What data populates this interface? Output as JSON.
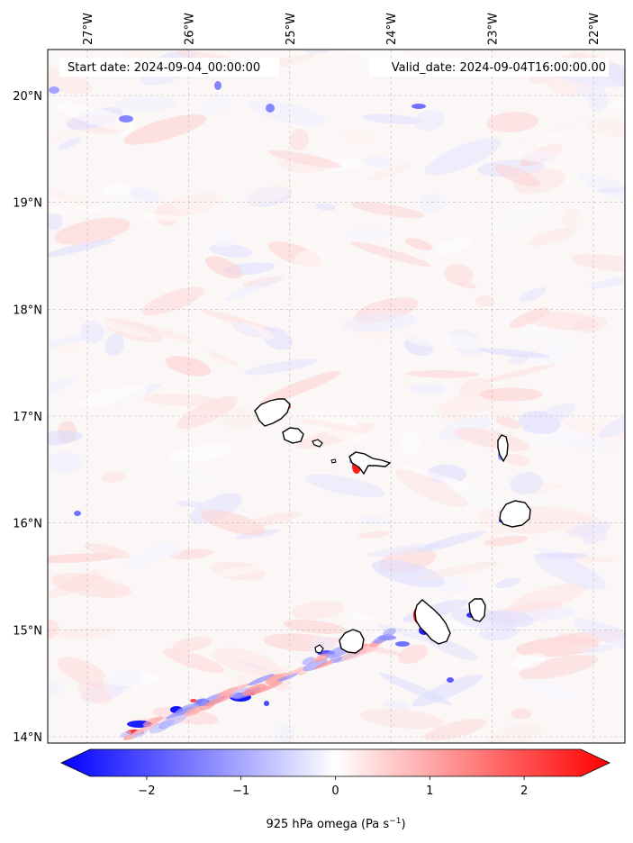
{
  "map": {
    "start_date_label": "Start date: 2024-09-04_00:00:00",
    "valid_date_label": "Valid_date: 2024-09-04T16:00:00.00",
    "lon_ticks": [
      {
        "value": -27,
        "label": "27°W"
      },
      {
        "value": -26,
        "label": "26°W"
      },
      {
        "value": -25,
        "label": "25°W"
      },
      {
        "value": -24,
        "label": "24°W"
      },
      {
        "value": -23,
        "label": "23°W"
      },
      {
        "value": -22,
        "label": "22°W"
      }
    ],
    "lat_ticks": [
      {
        "value": 20,
        "label": "20°N"
      },
      {
        "value": 19,
        "label": "19°N"
      },
      {
        "value": 18,
        "label": "18°N"
      },
      {
        "value": 17,
        "label": "17°N"
      },
      {
        "value": 16,
        "label": "16°N"
      },
      {
        "value": 15,
        "label": "15°N"
      },
      {
        "value": 14,
        "label": "14°N"
      }
    ],
    "extent": {
      "lon_min": -27.4,
      "lon_max": -21.7,
      "lat_min": 13.95,
      "lat_max": 20.42
    },
    "gridlines": true,
    "gridline_color": "#bbbbbb",
    "coastline_color": "#000000",
    "background_color": "#fbf7f7",
    "islands": [
      {
        "name": "Santo Antão",
        "lon": -24.98,
        "lat": 17.06
      },
      {
        "name": "São Vicente",
        "lon": -24.97,
        "lat": 16.85
      },
      {
        "name": "Santa Luzia",
        "lon": -24.75,
        "lat": 16.77
      },
      {
        "name": "São Nicolau",
        "lon": -24.3,
        "lat": 16.6
      },
      {
        "name": "Sal",
        "lon": -22.93,
        "lat": 16.73
      },
      {
        "name": "Boa Vista",
        "lon": -22.82,
        "lat": 16.1
      },
      {
        "name": "Maio",
        "lon": -23.13,
        "lat": 15.22
      },
      {
        "name": "Santiago",
        "lon": -23.63,
        "lat": 15.08
      },
      {
        "name": "Fogo",
        "lon": -24.4,
        "lat": 14.92
      },
      {
        "name": "Brava",
        "lon": -24.7,
        "lat": 14.85
      }
    ]
  },
  "colorbar": {
    "label": "925 hPa omega (Pa s⁻¹)",
    "label_main": "925 hPa omega (Pa s",
    "label_exponent": "−1",
    "label_close": ")",
    "min": -2.6,
    "max": 2.6,
    "extend": "both",
    "colormap": "bwr",
    "color_low": "#0000ff",
    "color_mid": "#ffffff",
    "color_high": "#ff0000",
    "ticks": [
      {
        "value": -2,
        "label": "−2"
      },
      {
        "value": -1,
        "label": "−1"
      },
      {
        "value": 0,
        "label": "0"
      },
      {
        "value": 1,
        "label": "1"
      },
      {
        "value": 2,
        "label": "2"
      }
    ]
  }
}
